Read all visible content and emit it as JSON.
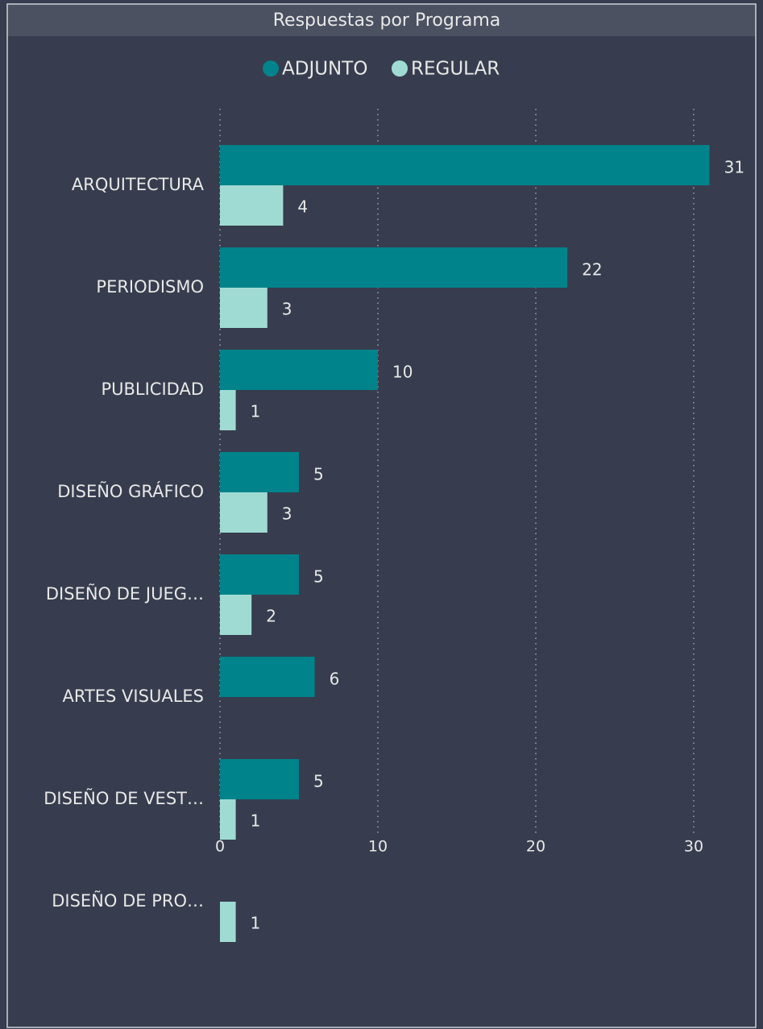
{
  "chart_data": {
    "type": "hbar",
    "title": "Respuestas por Programa",
    "categories": [
      "ARQUITECTURA",
      "PERIODISMO",
      "PUBLICIDAD",
      "DISEÑO GRÁFICO",
      "DISEÑO DE JUEG…",
      "ARTES VISUALES",
      "DISEÑO DE VEST…",
      "DISEÑO DE PRO…"
    ],
    "series": [
      {
        "name": "ADJUNTO",
        "color": "#00838a",
        "values": [
          31,
          22,
          10,
          5,
          5,
          6,
          5,
          null
        ]
      },
      {
        "name": "REGULAR",
        "color": "#a0dbd3",
        "values": [
          4,
          3,
          1,
          3,
          2,
          null,
          1,
          1
        ]
      }
    ],
    "xlim": [
      0,
      34
    ],
    "xticks": [
      0,
      10,
      20,
      30
    ],
    "grid": true,
    "legend": "top"
  }
}
